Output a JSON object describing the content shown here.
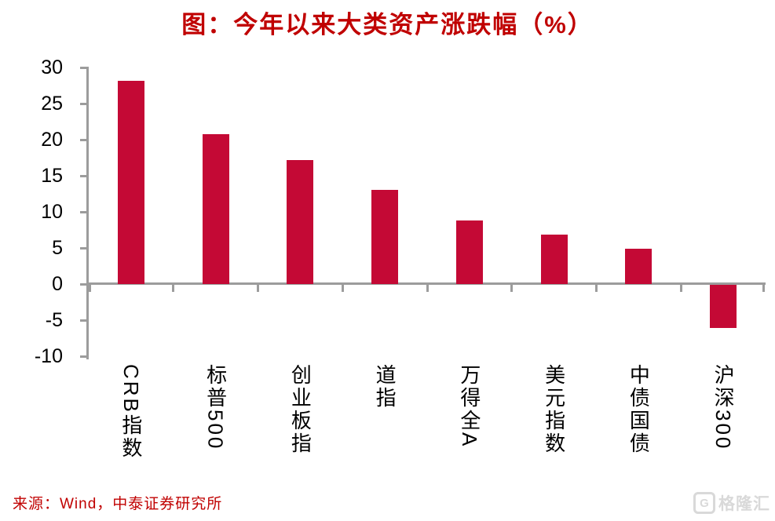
{
  "title": "图：今年以来大类资产涨跌幅（%）",
  "source_note": "来源：Wind，中泰证券研究所",
  "watermark": {
    "brand": "格隆汇",
    "badge_letter": "G"
  },
  "colors": {
    "bar": "#C40935",
    "axis": "#9C9C9C",
    "title_text": "#C00000",
    "source_text": "#C00000",
    "tick_text": "#000000",
    "watermark_text": "#D9D9D9"
  },
  "chart_data": {
    "type": "bar",
    "title": "图：今年以来大类资产涨跌幅（%）",
    "categories": [
      "CRB指数",
      "标普500",
      "创业板指",
      "道指",
      "万得全A",
      "美元指数",
      "中债国债",
      "沪深300"
    ],
    "values": [
      28.1,
      20.8,
      17.2,
      13.0,
      8.8,
      6.9,
      4.9,
      -6.0
    ],
    "ylim": [
      -10,
      30
    ],
    "yticks": [
      30,
      25,
      20,
      15,
      10,
      5,
      0,
      -5,
      -10
    ],
    "xlabel": "",
    "ylabel": "",
    "grid": false,
    "legend": "none"
  }
}
